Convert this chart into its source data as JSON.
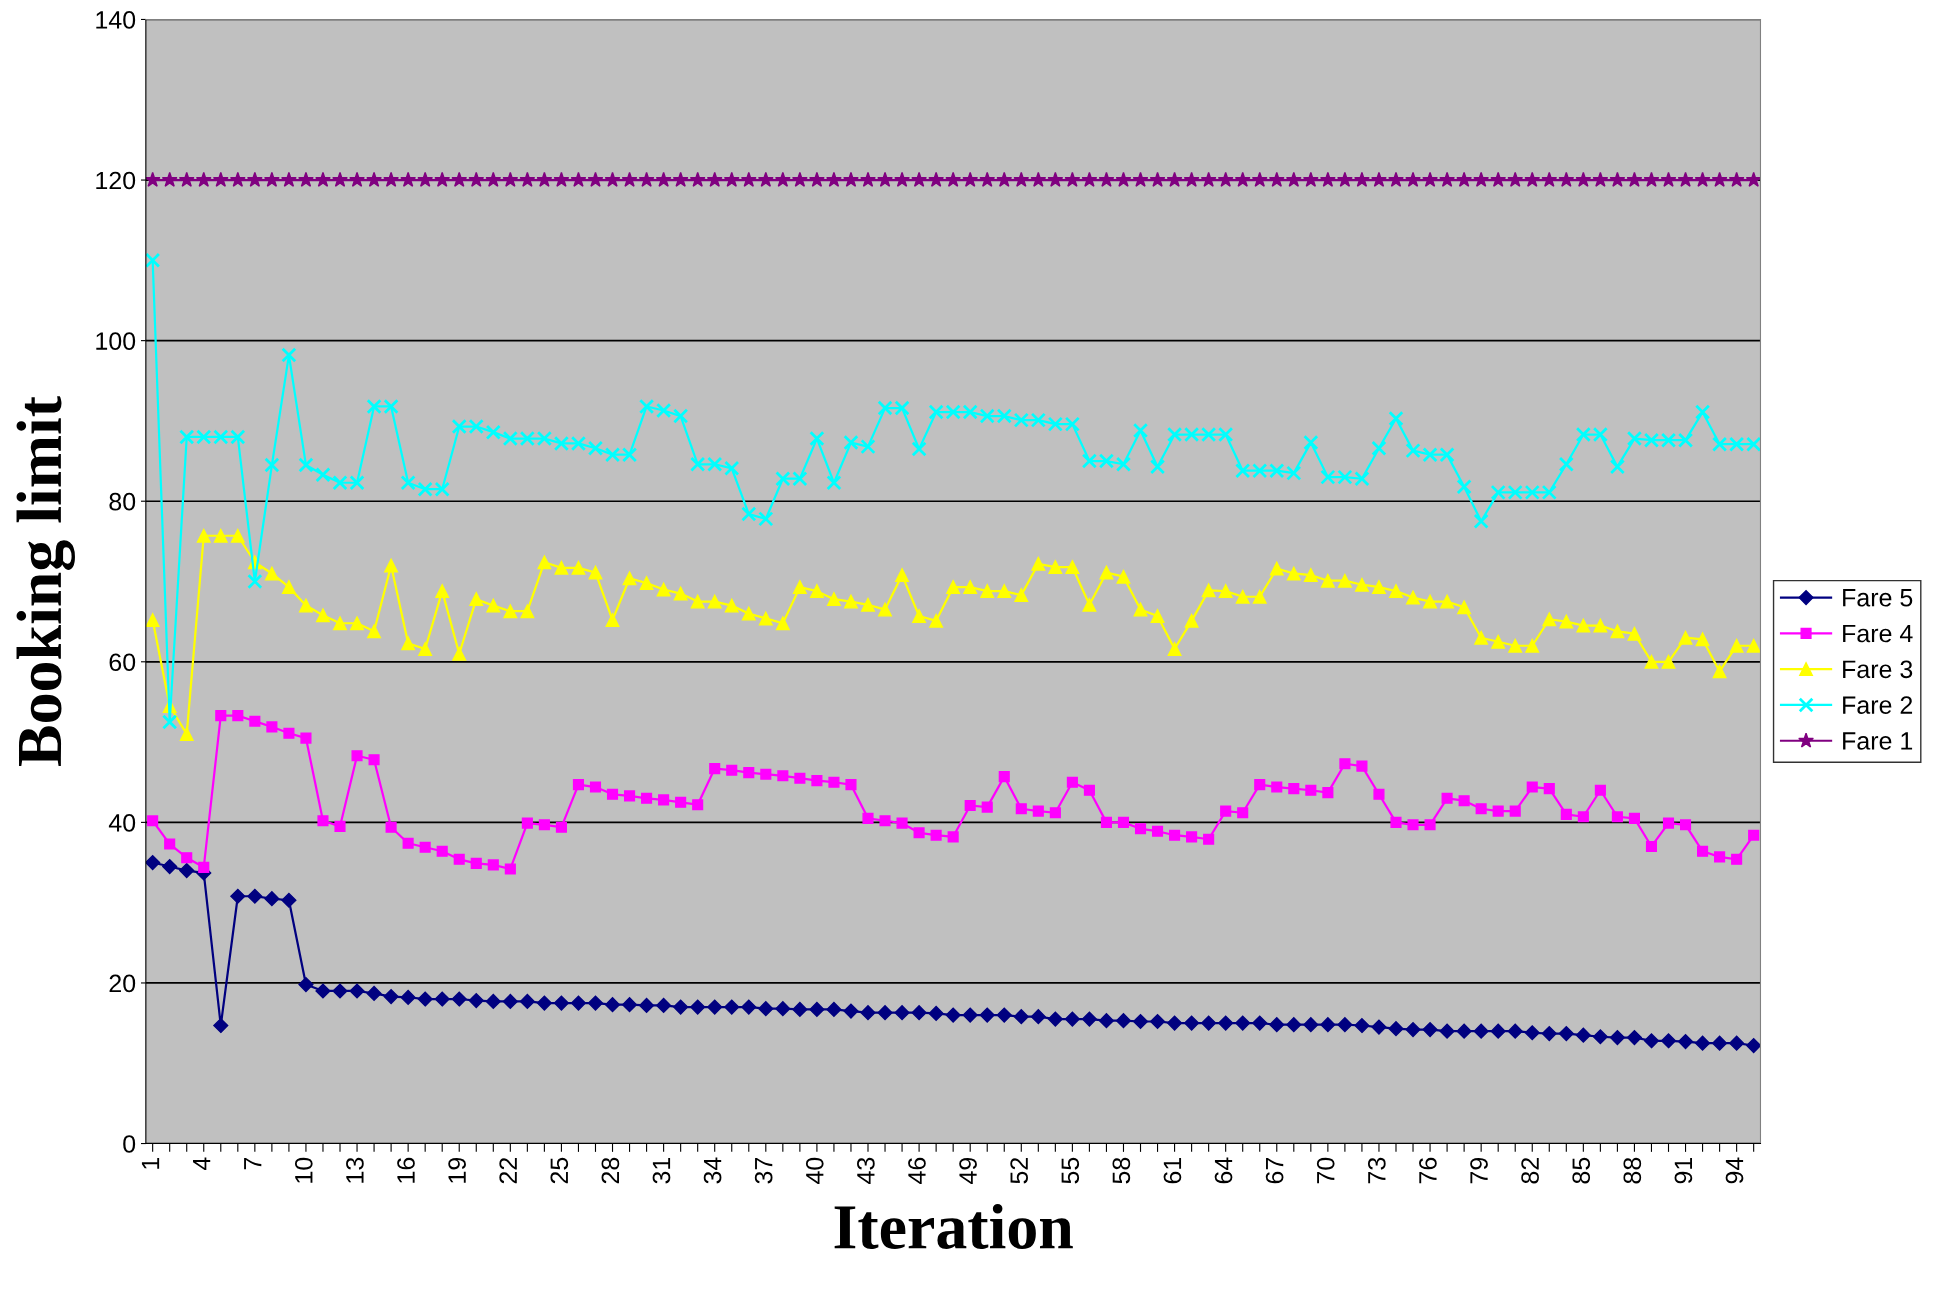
{
  "chart_data": {
    "type": "line",
    "xlabel": "Iteration",
    "ylabel": "Booking limit",
    "categories": [
      "1",
      null,
      null,
      "4",
      null,
      null,
      "7",
      null,
      null,
      "10",
      null,
      null,
      "13",
      null,
      null,
      "16",
      null,
      null,
      "19",
      null,
      null,
      "22",
      null,
      null,
      "25",
      null,
      null,
      "28",
      null,
      null,
      "31",
      null,
      null,
      "34",
      null,
      null,
      "37",
      null,
      null,
      "40",
      null,
      null,
      "43",
      null,
      null,
      "46",
      null,
      null,
      "49",
      null,
      null,
      "52",
      null,
      null,
      "55",
      null,
      null,
      "58",
      null,
      null,
      "61",
      null,
      null,
      "64",
      null,
      null,
      "67",
      null,
      null,
      "70",
      null,
      null,
      "73",
      null,
      null,
      "76",
      null,
      null,
      "79",
      null,
      null,
      "82",
      null,
      null,
      "85",
      null,
      null,
      "88",
      null,
      null,
      "91",
      null,
      null,
      "94",
      null
    ],
    "ylim": [
      0,
      140
    ],
    "yticks": [
      0,
      20,
      40,
      60,
      80,
      100,
      120,
      140
    ],
    "grid": "y",
    "legend": "right",
    "line_style": "solid",
    "series": [
      {
        "name": "Fare 5",
        "color": "#000080",
        "marker": "diamond",
        "values": [
          35.0,
          34.5,
          34.0,
          33.7,
          14.7,
          30.8,
          30.8,
          30.5,
          30.3,
          19.8,
          19.0,
          19.0,
          19.0,
          18.7,
          18.3,
          18.2,
          18.0,
          18.0,
          18.0,
          17.8,
          17.7,
          17.7,
          17.7,
          17.5,
          17.5,
          17.5,
          17.5,
          17.3,
          17.3,
          17.2,
          17.2,
          17.0,
          17.0,
          17.0,
          17.0,
          17.0,
          16.8,
          16.8,
          16.7,
          16.7,
          16.7,
          16.5,
          16.3,
          16.3,
          16.3,
          16.3,
          16.2,
          16.0,
          16.0,
          16.0,
          16.0,
          15.8,
          15.8,
          15.5,
          15.5,
          15.5,
          15.3,
          15.3,
          15.2,
          15.2,
          15.0,
          15.0,
          15.0,
          15.0,
          15.0,
          15.0,
          14.8,
          14.8,
          14.8,
          14.8,
          14.8,
          14.7,
          14.5,
          14.3,
          14.2,
          14.2,
          14.0,
          14.0,
          14.0,
          14.0,
          14.0,
          13.8,
          13.7,
          13.7,
          13.5,
          13.3,
          13.2,
          13.2,
          12.8,
          12.8,
          12.7,
          12.5,
          12.5,
          12.5,
          12.2
        ]
      },
      {
        "name": "Fare 4",
        "color": "#ff00ff",
        "marker": "square",
        "values": [
          40.2,
          37.3,
          35.6,
          34.4,
          53.3,
          53.3,
          52.6,
          51.9,
          51.1,
          50.5,
          40.2,
          39.5,
          48.3,
          47.8,
          39.4,
          37.4,
          36.9,
          36.4,
          35.4,
          34.9,
          34.7,
          34.2,
          39.9,
          39.7,
          39.4,
          44.7,
          44.4,
          43.5,
          43.3,
          43.0,
          42.8,
          42.5,
          42.2,
          46.7,
          46.5,
          46.2,
          46.0,
          45.8,
          45.5,
          45.2,
          45.0,
          44.7,
          40.5,
          40.2,
          39.9,
          38.7,
          38.4,
          38.2,
          42.1,
          41.9,
          45.7,
          41.7,
          41.4,
          41.2,
          45.0,
          44.0,
          40.0,
          40.0,
          39.2,
          38.9,
          38.4,
          38.2,
          37.9,
          41.4,
          41.2,
          44.7,
          44.4,
          44.2,
          44.0,
          43.7,
          47.3,
          47.0,
          43.5,
          40.0,
          39.7,
          39.7,
          43.0,
          42.7,
          41.7,
          41.4,
          41.4,
          44.4,
          44.2,
          41.0,
          40.7,
          44.0,
          40.7,
          40.5,
          37.0,
          39.9,
          39.7,
          36.4,
          35.7,
          35.4,
          38.4
        ]
      },
      {
        "name": "Fare 3",
        "color": "#ffff00",
        "marker": "triangle",
        "values": [
          65.2,
          54.5,
          51.0,
          75.7,
          75.7,
          75.7,
          72.4,
          71.0,
          69.3,
          67.0,
          65.8,
          64.8,
          64.8,
          63.8,
          72.0,
          62.3,
          61.6,
          68.8,
          61.0,
          67.8,
          67.0,
          66.3,
          66.3,
          72.4,
          71.7,
          71.7,
          71.1,
          65.2,
          70.4,
          69.8,
          69.0,
          68.5,
          67.5,
          67.5,
          67.0,
          66.0,
          65.4,
          64.8,
          69.3,
          68.8,
          67.8,
          67.5,
          67.1,
          66.5,
          70.8,
          65.7,
          65.1,
          69.3,
          69.3,
          68.8,
          68.8,
          68.3,
          72.2,
          71.8,
          71.8,
          67.1,
          71.1,
          70.6,
          66.5,
          65.7,
          61.6,
          65.1,
          68.9,
          68.8,
          68.1,
          68.1,
          71.6,
          71.0,
          70.8,
          70.1,
          70.1,
          69.6,
          69.3,
          68.8,
          68.0,
          67.5,
          67.5,
          66.8,
          63.0,
          62.5,
          62.0,
          62.0,
          65.3,
          65.0,
          64.5,
          64.5,
          63.8,
          63.5,
          60.0,
          60.0,
          63.0,
          62.8,
          58.8,
          62.0,
          62.0
        ]
      },
      {
        "name": "Fare 2",
        "color": "#00ffff",
        "marker": "cross",
        "values": [
          110.0,
          52.5,
          88.0,
          88.0,
          88.0,
          88.0,
          70.0,
          84.5,
          98.2,
          84.5,
          83.3,
          82.3,
          82.3,
          91.8,
          91.8,
          82.3,
          81.5,
          81.5,
          89.3,
          89.3,
          88.6,
          87.8,
          87.8,
          87.8,
          87.2,
          87.2,
          86.6,
          85.8,
          85.8,
          91.8,
          91.3,
          90.6,
          84.6,
          84.6,
          84.1,
          78.4,
          77.8,
          82.8,
          82.8,
          87.8,
          82.3,
          87.3,
          86.8,
          91.6,
          91.6,
          86.5,
          91.1,
          91.1,
          91.1,
          90.6,
          90.6,
          90.1,
          90.1,
          89.6,
          89.6,
          85.0,
          85.0,
          84.6,
          88.8,
          84.3,
          88.3,
          88.3,
          88.3,
          88.3,
          83.8,
          83.8,
          83.8,
          83.5,
          87.3,
          83.0,
          83.0,
          82.8,
          86.6,
          90.3,
          86.3,
          85.8,
          85.8,
          81.8,
          77.5,
          81.1,
          81.1,
          81.1,
          81.1,
          84.6,
          88.3,
          88.3,
          84.3,
          87.8,
          87.6,
          87.6,
          87.6,
          91.1,
          87.1,
          87.1,
          87.1
        ]
      },
      {
        "name": "Fare 1",
        "color": "#800080",
        "marker": "star",
        "values": [
          120,
          120,
          120,
          120,
          120,
          120,
          120,
          120,
          120,
          120,
          120,
          120,
          120,
          120,
          120,
          120,
          120,
          120,
          120,
          120,
          120,
          120,
          120,
          120,
          120,
          120,
          120,
          120,
          120,
          120,
          120,
          120,
          120,
          120,
          120,
          120,
          120,
          120,
          120,
          120,
          120,
          120,
          120,
          120,
          120,
          120,
          120,
          120,
          120,
          120,
          120,
          120,
          120,
          120,
          120,
          120,
          120,
          120,
          120,
          120,
          120,
          120,
          120,
          120,
          120,
          120,
          120,
          120,
          120,
          120,
          120,
          120,
          120,
          120,
          120,
          120,
          120,
          120,
          120,
          120,
          120,
          120,
          120,
          120,
          120,
          120,
          120,
          120,
          120,
          120,
          120,
          120,
          120,
          120,
          120
        ]
      }
    ]
  }
}
